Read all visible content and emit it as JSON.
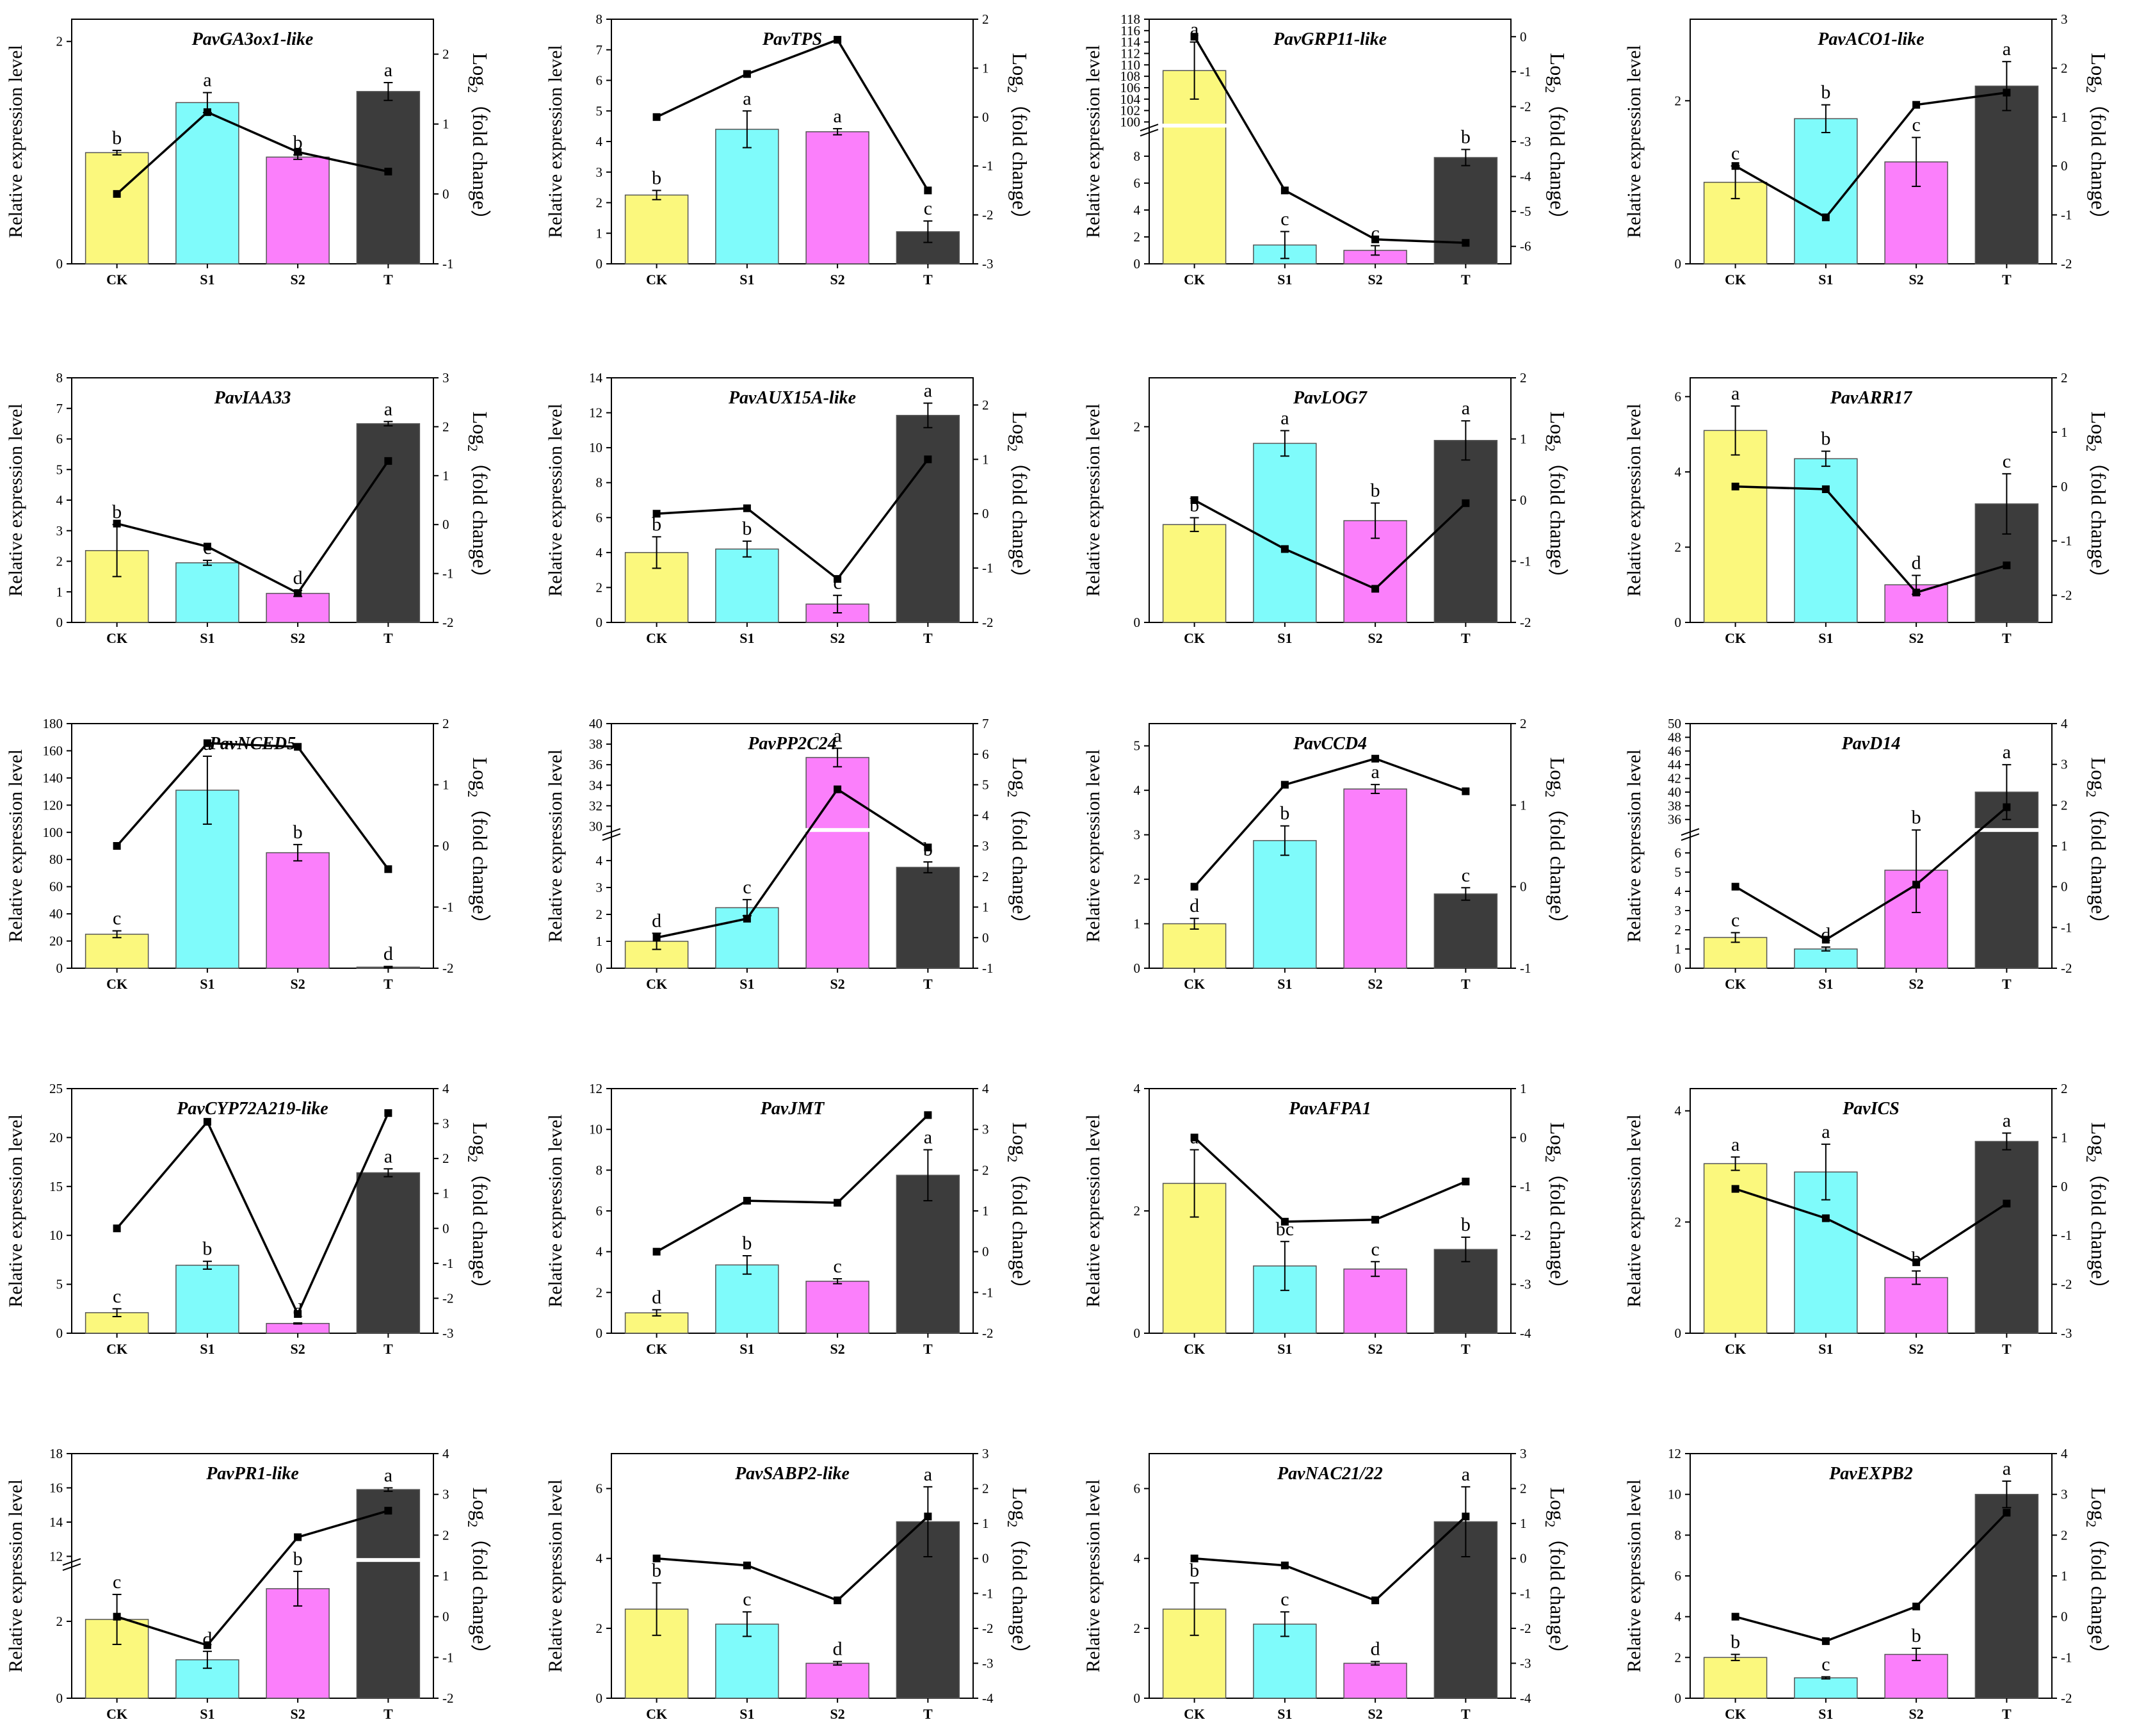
{
  "figure": {
    "left_axis_label": "Relative expression level",
    "right_axis_label": "Log",
    "right_axis_sub": "2",
    "right_axis_suffix": "（fold change）",
    "categories": [
      "CK",
      "S1",
      "S2",
      "T"
    ],
    "bar_colors": [
      "#FBF87D",
      "#7FFBFB",
      "#FB7FFB",
      "#3C3C3C"
    ]
  },
  "chart_data": [
    {
      "type": "bar+line",
      "title": "PavGA3ox1-like",
      "categories": [
        "CK",
        "S1",
        "S2",
        "T"
      ],
      "bars": [
        1.0,
        1.45,
        0.96,
        1.55
      ],
      "errors": [
        0.02,
        0.09,
        0.02,
        0.08
      ],
      "letters": [
        "b",
        "a",
        "b",
        "a"
      ],
      "log2": [
        0,
        1.17,
        0.6,
        0.32
      ],
      "ylim": [
        0,
        2.2
      ],
      "yticks": [
        0,
        2
      ],
      "y2lim": [
        -1,
        2.5
      ],
      "y2ticks": [
        -1,
        0,
        1,
        2
      ]
    },
    {
      "type": "bar+line",
      "title": "PavTPS",
      "categories": [
        "CK",
        "S1",
        "S2",
        "T"
      ],
      "bars": [
        2.25,
        4.4,
        4.32,
        1.05
      ],
      "errors": [
        0.15,
        0.6,
        0.1,
        0.35
      ],
      "letters": [
        "b",
        "a",
        "a",
        "c"
      ],
      "log2": [
        0,
        0.88,
        1.58,
        -1.5
      ],
      "ylim": [
        0,
        8
      ],
      "yticks": [
        0,
        1,
        2,
        3,
        4,
        5,
        6,
        7,
        8
      ],
      "y2lim": [
        -3,
        2
      ],
      "y2ticks": [
        -3,
        -2,
        -1,
        0,
        1,
        2
      ]
    },
    {
      "type": "bar+line",
      "title": "PavGRP11-like",
      "categories": [
        "CK",
        "S1",
        "S2",
        "T"
      ],
      "bars": [
        109,
        1.4,
        1.0,
        7.9
      ],
      "errors": [
        5,
        1.0,
        0.35,
        0.6
      ],
      "letters": [
        "a",
        "c",
        "c",
        "b"
      ],
      "log2": [
        0,
        -4.4,
        -5.8,
        -5.9
      ],
      "ylim": [
        0,
        10
      ],
      "yticks": [
        0,
        2,
        4,
        6,
        8
      ],
      "break": {
        "from": 10,
        "to": 100,
        "top": 118,
        "upper_ticks": [
          100,
          102,
          104,
          106,
          108,
          110,
          112,
          114,
          116,
          118
        ]
      },
      "y2lim": [
        -6.5,
        0.5
      ],
      "y2ticks": [
        -6,
        -5,
        -4,
        -3,
        -2,
        -1,
        0
      ]
    },
    {
      "type": "bar+line",
      "title": "PavACO1-like",
      "categories": [
        "CK",
        "S1",
        "S2",
        "T"
      ],
      "bars": [
        1.0,
        1.78,
        1.25,
        2.18
      ],
      "errors": [
        0.2,
        0.17,
        0.3,
        0.3
      ],
      "letters": [
        "c",
        "b",
        "c",
        "a"
      ],
      "log2": [
        0,
        -1.05,
        1.25,
        1.5
      ],
      "ylim": [
        0,
        3
      ],
      "yticks": [
        0,
        2
      ],
      "y2lim": [
        -2,
        3
      ],
      "y2ticks": [
        -2,
        -1,
        0,
        1,
        2,
        3
      ]
    },
    {
      "type": "bar+line",
      "title": "PavIAA33",
      "categories": [
        "CK",
        "S1",
        "S2",
        "T"
      ],
      "bars": [
        2.35,
        1.95,
        0.95,
        6.5
      ],
      "errors": [
        0.85,
        0.08,
        0.1,
        0.07
      ],
      "letters": [
        "b",
        "c",
        "d",
        "a"
      ],
      "log2": [
        0.02,
        -0.45,
        -1.4,
        1.3
      ],
      "ylim": [
        0,
        8
      ],
      "yticks": [
        0,
        1,
        2,
        3,
        4,
        5,
        6,
        7,
        8
      ],
      "y2lim": [
        -2,
        3
      ],
      "y2ticks": [
        -2,
        -1,
        0,
        1,
        2,
        3
      ]
    },
    {
      "type": "bar+line",
      "title": "PavAUX15A-like",
      "categories": [
        "CK",
        "S1",
        "S2",
        "T"
      ],
      "bars": [
        4.0,
        4.2,
        1.05,
        11.85
      ],
      "errors": [
        0.9,
        0.45,
        0.5,
        0.7
      ],
      "letters": [
        "b",
        "b",
        "c",
        "a"
      ],
      "log2": [
        0,
        0.1,
        -1.2,
        1.0
      ],
      "ylim": [
        0,
        14
      ],
      "yticks": [
        0,
        2,
        4,
        6,
        8,
        10,
        12,
        14
      ],
      "y2lim": [
        -2,
        2.5
      ],
      "y2ticks": [
        -2,
        -1,
        0,
        1,
        2
      ]
    },
    {
      "type": "bar+line",
      "title": "PavLOG7",
      "categories": [
        "CK",
        "S1",
        "S2",
        "T"
      ],
      "bars": [
        1.0,
        1.83,
        1.04,
        1.86
      ],
      "errors": [
        0.07,
        0.13,
        0.18,
        0.2
      ],
      "letters": [
        "b",
        "a",
        "b",
        "a"
      ],
      "log2": [
        0,
        -0.8,
        -1.45,
        -0.05
      ],
      "ylim": [
        0,
        2.5
      ],
      "yticks": [
        0,
        2
      ],
      "y2lim": [
        -2,
        2
      ],
      "y2ticks": [
        -2,
        -1,
        0,
        1,
        2
      ]
    },
    {
      "type": "bar+line",
      "title": "PavARR17",
      "categories": [
        "CK",
        "S1",
        "S2",
        "T"
      ],
      "bars": [
        5.1,
        4.35,
        1.0,
        3.15
      ],
      "errors": [
        0.65,
        0.2,
        0.25,
        0.8
      ],
      "letters": [
        "a",
        "b",
        "d",
        "c"
      ],
      "log2": [
        0,
        -0.05,
        -1.95,
        -1.45
      ],
      "ylim": [
        0,
        6.5
      ],
      "yticks": [
        0,
        2,
        4,
        6
      ],
      "y2lim": [
        -2.5,
        2
      ],
      "y2ticks": [
        -2,
        -1,
        0,
        1,
        2
      ]
    },
    {
      "type": "bar+line",
      "title": "PavNCED5",
      "categories": [
        "CK",
        "S1",
        "S2",
        "T"
      ],
      "bars": [
        25,
        131,
        85,
        0.8
      ],
      "errors": [
        2.5,
        25,
        6,
        0.5
      ],
      "letters": [
        "c",
        "a",
        "b",
        "d"
      ],
      "log2": [
        0,
        1.68,
        1.62,
        -0.38
      ],
      "ylim": [
        0,
        180
      ],
      "yticks": [
        0,
        20,
        40,
        60,
        80,
        100,
        120,
        140,
        160,
        180
      ],
      "y2lim": [
        -2,
        2
      ],
      "y2ticks": [
        -2,
        -1,
        0,
        1,
        2
      ]
    },
    {
      "type": "bar+line",
      "title": "PavPP2C24",
      "categories": [
        "CK",
        "S1",
        "S2",
        "T"
      ],
      "bars": [
        1.0,
        2.25,
        36.7,
        3.75
      ],
      "errors": [
        0.3,
        0.3,
        0.9,
        0.2
      ],
      "letters": [
        "d",
        "c",
        "a",
        "b"
      ],
      "log2": [
        0,
        0.62,
        4.85,
        2.95
      ],
      "ylim": [
        0,
        5
      ],
      "yticks": [
        0,
        1,
        2,
        3,
        4
      ],
      "break": {
        "from": 5,
        "to": 30,
        "top": 40,
        "upper_ticks": [
          30,
          32,
          34,
          36,
          38,
          40
        ]
      },
      "y2lim": [
        -1,
        7
      ],
      "y2ticks": [
        -1,
        0,
        1,
        2,
        3,
        4,
        5,
        6,
        7
      ]
    },
    {
      "type": "bar+line",
      "title": "PavCCD4",
      "categories": [
        "CK",
        "S1",
        "S2",
        "T"
      ],
      "bars": [
        1.0,
        2.87,
        4.03,
        1.67
      ],
      "errors": [
        0.12,
        0.33,
        0.1,
        0.14
      ],
      "letters": [
        "d",
        "b",
        "a",
        "c"
      ],
      "log2": [
        0,
        1.25,
        1.57,
        1.17
      ],
      "ylim": [
        0,
        5.5
      ],
      "yticks": [
        0,
        1,
        2,
        3,
        4,
        5
      ],
      "y2lim": [
        -1,
        2
      ],
      "y2ticks": [
        -1,
        0,
        1,
        2
      ]
    },
    {
      "type": "bar+line",
      "title": "PavD14",
      "categories": [
        "CK",
        "S1",
        "S2",
        "T"
      ],
      "bars": [
        1.6,
        1.0,
        5.1,
        40
      ],
      "errors": [
        0.25,
        0.1,
        2.2,
        4
      ],
      "letters": [
        "c",
        "d",
        "b",
        "a"
      ],
      "log2": [
        0,
        -1.3,
        0.05,
        1.95
      ],
      "ylim": [
        0,
        7
      ],
      "yticks": [
        0,
        1,
        2,
        3,
        4,
        5,
        6
      ],
      "break": {
        "from": 7,
        "to": 35,
        "top": 50,
        "upper_ticks": [
          36,
          38,
          40,
          42,
          44,
          46,
          48,
          50
        ]
      },
      "y2lim": [
        -2,
        4
      ],
      "y2ticks": [
        -2,
        -1,
        0,
        1,
        2,
        3,
        4
      ]
    },
    {
      "type": "bar+line",
      "title": "PavCYP72A219-like",
      "categories": [
        "CK",
        "S1",
        "S2",
        "T"
      ],
      "bars": [
        2.1,
        6.95,
        1.0,
        16.4
      ],
      "errors": [
        0.4,
        0.4,
        0.05,
        0.4
      ],
      "letters": [
        "c",
        "b",
        "d",
        "a"
      ],
      "log2": [
        0,
        3.05,
        -2.45,
        3.3
      ],
      "ylim": [
        0,
        25
      ],
      "yticks": [
        0,
        5,
        10,
        15,
        20,
        25
      ],
      "y2lim": [
        -3,
        4
      ],
      "y2ticks": [
        -3,
        -2,
        -1,
        0,
        1,
        2,
        3,
        4
      ]
    },
    {
      "type": "bar+line",
      "title": "PavJMT",
      "categories": [
        "CK",
        "S1",
        "S2",
        "T"
      ],
      "bars": [
        1.0,
        3.35,
        2.55,
        7.75
      ],
      "errors": [
        0.15,
        0.45,
        0.12,
        1.25
      ],
      "letters": [
        "d",
        "b",
        "c",
        "a"
      ],
      "log2": [
        0,
        1.25,
        1.2,
        3.35
      ],
      "ylim": [
        0,
        12
      ],
      "yticks": [
        0,
        2,
        4,
        6,
        8,
        10,
        12
      ],
      "y2lim": [
        -2,
        4
      ],
      "y2ticks": [
        -2,
        -1,
        0,
        1,
        2,
        3,
        4
      ]
    },
    {
      "type": "bar+line",
      "title": "PavAFPA1",
      "categories": [
        "CK",
        "S1",
        "S2",
        "T"
      ],
      "bars": [
        2.45,
        1.1,
        1.05,
        1.37
      ],
      "errors": [
        0.55,
        0.4,
        0.12,
        0.2
      ],
      "letters": [
        "a",
        "bc",
        "c",
        "b"
      ],
      "log2": [
        0,
        -1.72,
        -1.68,
        -0.9
      ],
      "ylim": [
        0,
        4
      ],
      "yticks": [
        0,
        2,
        4
      ],
      "y2lim": [
        -4,
        1
      ],
      "y2ticks": [
        -4,
        -3,
        -2,
        -1,
        0,
        1
      ]
    },
    {
      "type": "bar+line",
      "title": "PavICS",
      "categories": [
        "CK",
        "S1",
        "S2",
        "T"
      ],
      "bars": [
        3.05,
        2.9,
        1.0,
        3.45
      ],
      "errors": [
        0.12,
        0.5,
        0.12,
        0.15
      ],
      "letters": [
        "a",
        "a",
        "b",
        "a"
      ],
      "log2": [
        -0.05,
        -0.65,
        -1.55,
        -0.35
      ],
      "ylim": [
        0,
        4.4
      ],
      "yticks": [
        0,
        2,
        4
      ],
      "y2lim": [
        -3,
        2
      ],
      "y2ticks": [
        -3,
        -2,
        -1,
        0,
        1,
        2
      ]
    },
    {
      "type": "bar+line",
      "title": "PavPR1-like",
      "categories": [
        "CK",
        "S1",
        "S2",
        "T"
      ],
      "bars": [
        2.05,
        1.0,
        2.85,
        15.9
      ],
      "errors": [
        0.65,
        0.22,
        0.45,
        0.1
      ],
      "letters": [
        "c",
        "d",
        "b",
        "a"
      ],
      "log2": [
        0,
        -0.7,
        1.95,
        2.6
      ],
      "ylim": [
        0,
        3.5
      ],
      "yticks": [
        0,
        2
      ],
      "break": {
        "from": 3.5,
        "to": 12,
        "top": 18,
        "upper_ticks": [
          12,
          14,
          16,
          18
        ]
      },
      "y2lim": [
        -2,
        4
      ],
      "y2ticks": [
        -2,
        -1,
        0,
        1,
        2,
        3,
        4
      ]
    },
    {
      "type": "bar+line",
      "title": "PavSABP2-like",
      "categories": [
        "CK",
        "S1",
        "S2",
        "T"
      ],
      "bars": [
        2.55,
        2.12,
        1.0,
        5.05
      ],
      "errors": [
        0.75,
        0.35,
        0.05,
        1.0
      ],
      "letters": [
        "b",
        "c",
        "d",
        "a"
      ],
      "log2": [
        0,
        -0.2,
        -1.2,
        1.2
      ],
      "ylim": [
        0,
        7
      ],
      "yticks": [
        0,
        2,
        4,
        6
      ],
      "y2lim": [
        -4,
        3
      ],
      "y2ticks": [
        -4,
        -3,
        -2,
        -1,
        0,
        1,
        2,
        3
      ]
    },
    {
      "type": "bar+line",
      "title": "PavNAC21/22",
      "categories": [
        "CK",
        "S1",
        "S2",
        "T"
      ],
      "bars": [
        2.55,
        2.12,
        1.0,
        5.05
      ],
      "errors": [
        0.75,
        0.35,
        0.05,
        1.0
      ],
      "letters": [
        "b",
        "c",
        "d",
        "a"
      ],
      "log2": [
        0,
        -0.2,
        -1.2,
        1.2
      ],
      "ylim": [
        0,
        7
      ],
      "yticks": [
        0,
        2,
        4,
        6
      ],
      "y2lim": [
        -4,
        3
      ],
      "y2ticks": [
        -4,
        -3,
        -2,
        -1,
        0,
        1,
        2,
        3
      ]
    },
    {
      "type": "bar+line",
      "title": "PavEXPB2",
      "categories": [
        "CK",
        "S1",
        "S2",
        "T"
      ],
      "bars": [
        2.0,
        1.0,
        2.15,
        10.0
      ],
      "errors": [
        0.15,
        0.05,
        0.3,
        0.65
      ],
      "letters": [
        "b",
        "c",
        "b",
        "a"
      ],
      "log2": [
        0,
        -0.6,
        0.25,
        2.55
      ],
      "ylim": [
        0,
        12
      ],
      "yticks": [
        0,
        2,
        4,
        6,
        8,
        10,
        12
      ],
      "y2lim": [
        -2,
        4
      ],
      "y2ticks": [
        -2,
        -1,
        0,
        1,
        2,
        3,
        4
      ]
    }
  ]
}
